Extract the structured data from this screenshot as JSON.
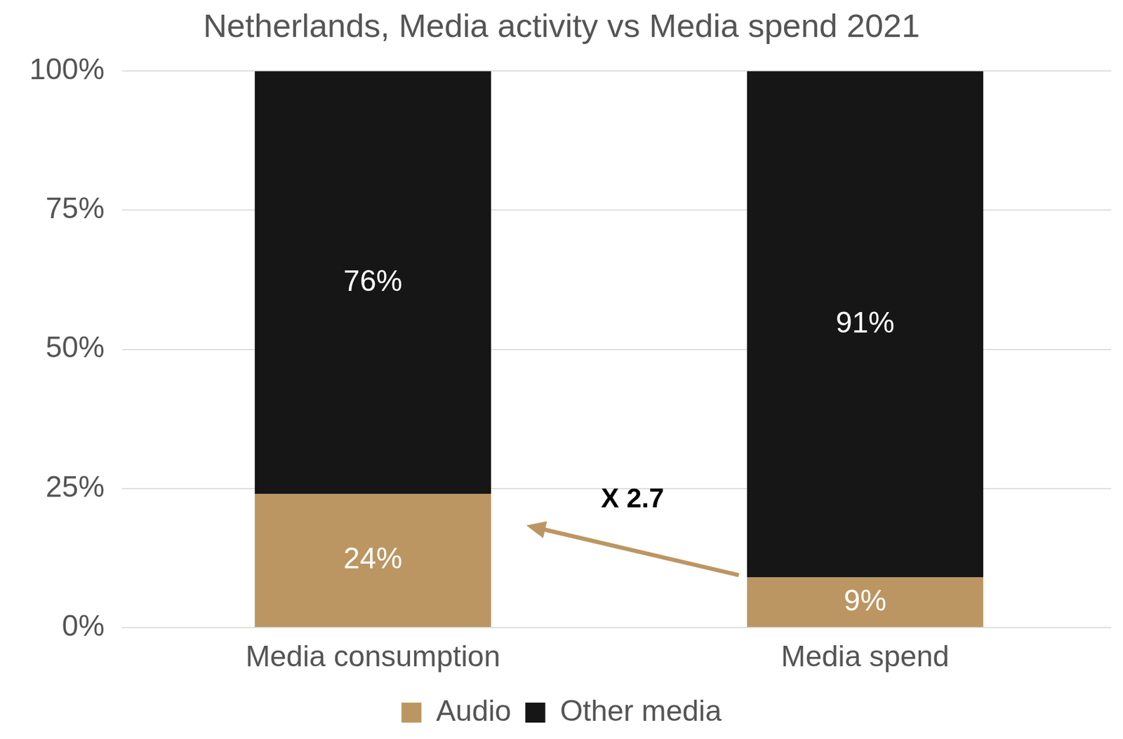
{
  "chart_data": {
    "type": "bar",
    "title": "Netherlands, Media activity vs Media spend 2021",
    "categories": [
      "Media consumption",
      "Media spend"
    ],
    "series": [
      {
        "name": "Audio",
        "color": "#bc9662",
        "values": [
          24,
          9
        ],
        "value_labels": [
          "24%",
          "9%"
        ]
      },
      {
        "name": "Other media",
        "color": "#161616",
        "values": [
          76,
          91
        ],
        "value_labels": [
          "76%",
          "91%"
        ]
      }
    ],
    "stacked": true,
    "data_labels": true,
    "ylim": [
      0,
      100
    ],
    "yticks": [
      {
        "value": 0,
        "label": "0%"
      },
      {
        "value": 25,
        "label": "25%"
      },
      {
        "value": 50,
        "label": "50%"
      },
      {
        "value": 75,
        "label": "75%"
      },
      {
        "value": 100,
        "label": "100%"
      }
    ],
    "grid": true,
    "legend": "bottom",
    "annotations": [
      {
        "text": "X 2.7"
      }
    ]
  }
}
